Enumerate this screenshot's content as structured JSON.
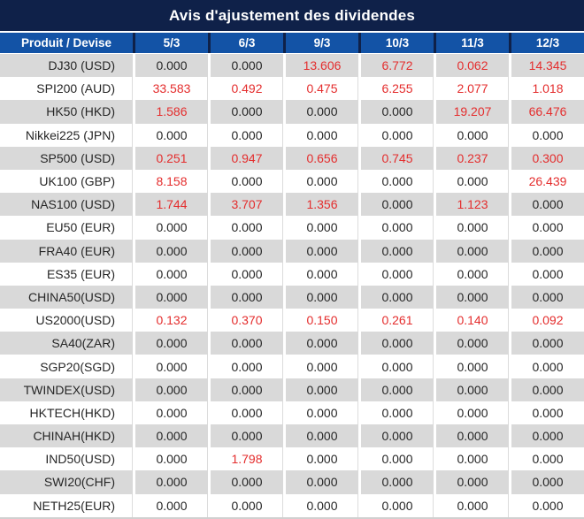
{
  "title": "Avis d'ajustement des dividendes",
  "colors": {
    "title_bar_navy": "#0f2149",
    "header_blue": "#1353a6",
    "row_gray": "#d9d9d9",
    "value_red": "#e42d2d",
    "value_black": "#262626"
  },
  "table": {
    "product_header": "Produit / Devise",
    "date_columns": [
      "5/3",
      "6/3",
      "9/3",
      "10/3",
      "11/3",
      "12/3"
    ],
    "zero_value": "0.000",
    "rows": [
      {
        "product": "DJ30 (USD)",
        "values": [
          "0.000",
          "0.000",
          "13.606",
          "6.772",
          "0.062",
          "14.345"
        ]
      },
      {
        "product": "SPI200 (AUD)",
        "values": [
          "33.583",
          "0.492",
          "0.475",
          "6.255",
          "2.077",
          "1.018"
        ]
      },
      {
        "product": "HK50 (HKD)",
        "values": [
          "1.586",
          "0.000",
          "0.000",
          "0.000",
          "19.207",
          "66.476"
        ]
      },
      {
        "product": "Nikkei225 (JPN)",
        "values": [
          "0.000",
          "0.000",
          "0.000",
          "0.000",
          "0.000",
          "0.000"
        ]
      },
      {
        "product": "SP500 (USD)",
        "values": [
          "0.251",
          "0.947",
          "0.656",
          "0.745",
          "0.237",
          "0.300"
        ]
      },
      {
        "product": "UK100 (GBP)",
        "values": [
          "8.158",
          "0.000",
          "0.000",
          "0.000",
          "0.000",
          "26.439"
        ]
      },
      {
        "product": "NAS100 (USD)",
        "values": [
          "1.744",
          "3.707",
          "1.356",
          "0.000",
          "1.123",
          "0.000"
        ]
      },
      {
        "product": "EU50 (EUR)",
        "values": [
          "0.000",
          "0.000",
          "0.000",
          "0.000",
          "0.000",
          "0.000"
        ]
      },
      {
        "product": "FRA40 (EUR)",
        "values": [
          "0.000",
          "0.000",
          "0.000",
          "0.000",
          "0.000",
          "0.000"
        ]
      },
      {
        "product": "ES35 (EUR)",
        "values": [
          "0.000",
          "0.000",
          "0.000",
          "0.000",
          "0.000",
          "0.000"
        ]
      },
      {
        "product": "CHINA50(USD)",
        "values": [
          "0.000",
          "0.000",
          "0.000",
          "0.000",
          "0.000",
          "0.000"
        ]
      },
      {
        "product": "US2000(USD)",
        "values": [
          "0.132",
          "0.370",
          "0.150",
          "0.261",
          "0.140",
          "0.092"
        ]
      },
      {
        "product": "SA40(ZAR)",
        "values": [
          "0.000",
          "0.000",
          "0.000",
          "0.000",
          "0.000",
          "0.000"
        ]
      },
      {
        "product": "SGP20(SGD)",
        "values": [
          "0.000",
          "0.000",
          "0.000",
          "0.000",
          "0.000",
          "0.000"
        ]
      },
      {
        "product": "TWINDEX(USD)",
        "values": [
          "0.000",
          "0.000",
          "0.000",
          "0.000",
          "0.000",
          "0.000"
        ]
      },
      {
        "product": "HKTECH(HKD)",
        "values": [
          "0.000",
          "0.000",
          "0.000",
          "0.000",
          "0.000",
          "0.000"
        ]
      },
      {
        "product": "CHINAH(HKD)",
        "values": [
          "0.000",
          "0.000",
          "0.000",
          "0.000",
          "0.000",
          "0.000"
        ]
      },
      {
        "product": "IND50(USD)",
        "values": [
          "0.000",
          "1.798",
          "0.000",
          "0.000",
          "0.000",
          "0.000"
        ]
      },
      {
        "product": "SWI20(CHF)",
        "values": [
          "0.000",
          "0.000",
          "0.000",
          "0.000",
          "0.000",
          "0.000"
        ]
      },
      {
        "product": "NETH25(EUR)",
        "values": [
          "0.000",
          "0.000",
          "0.000",
          "0.000",
          "0.000",
          "0.000"
        ]
      }
    ]
  }
}
